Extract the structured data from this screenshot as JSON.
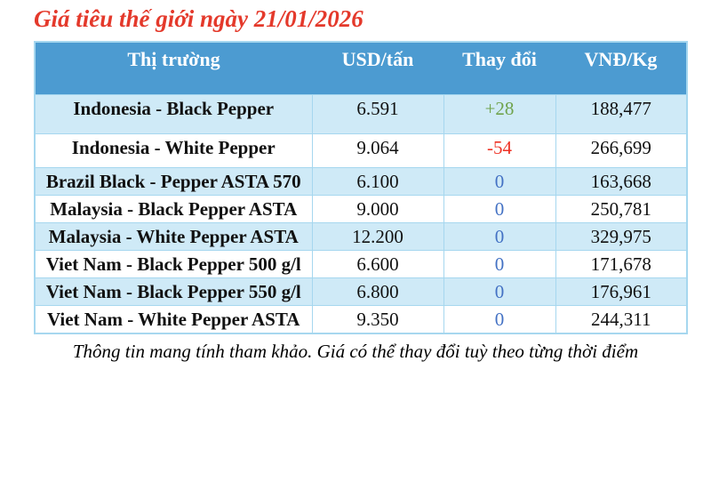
{
  "title": "Giá tiêu thế giới ngày 21/01/2026",
  "footer": "Thông tin mang tính tham khảo. Giá có thể thay đổi tuỳ theo từng thời điểm",
  "table": {
    "columns": [
      "Thị trường",
      "USD/tấn",
      "Thay đổi",
      "VNĐ/Kg"
    ],
    "rows": [
      {
        "market": "Indonesia - Black Pepper",
        "usd_per_ton": "6.591",
        "change": "+28",
        "trend": "up",
        "vnd_per_kg": "188,477"
      },
      {
        "market": "Indonesia - White Pepper",
        "usd_per_ton": "9.064",
        "change": "-54",
        "trend": "down",
        "vnd_per_kg": "266,699"
      },
      {
        "market": "Brazil Black - Pepper ASTA 570",
        "usd_per_ton": "6.100",
        "change": "0",
        "trend": "flat",
        "vnd_per_kg": "163,668"
      },
      {
        "market": "Malaysia - Black Pepper ASTA",
        "usd_per_ton": "9.000",
        "change": "0",
        "trend": "flat",
        "vnd_per_kg": "250,781"
      },
      {
        "market": "Malaysia - White Pepper ASTA",
        "usd_per_ton": "12.200",
        "change": "0",
        "trend": "flat",
        "vnd_per_kg": "329,975"
      },
      {
        "market": "Viet Nam - Black Pepper 500 g/l",
        "usd_per_ton": "6.600",
        "change": "0",
        "trend": "flat",
        "vnd_per_kg": "171,678"
      },
      {
        "market": "Viet Nam - Black Pepper 550 g/l",
        "usd_per_ton": "6.800",
        "change": "0",
        "trend": "flat",
        "vnd_per_kg": "176,961"
      },
      {
        "market": "Viet Nam - White Pepper ASTA",
        "usd_per_ton": "9.350",
        "change": "0",
        "trend": "flat",
        "vnd_per_kg": "244,311"
      }
    ]
  },
  "colors": {
    "title_red": "#e4392b",
    "header_bg": "#4c9bd1",
    "header_text": "#ffffff",
    "row_alt_bg": "#cfeaf7",
    "row_bg": "#ffffff",
    "border": "#a6d7ef",
    "change_up": "#6fa34c",
    "change_down": "#ee3124",
    "change_flat": "#4472c4",
    "text": "#111111"
  }
}
